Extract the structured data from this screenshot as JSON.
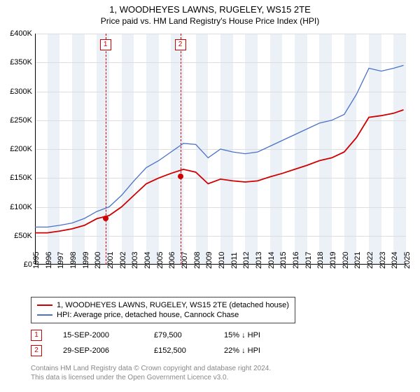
{
  "title": {
    "main": "1, WOODHEYES LAWNS, RUGELEY, WS15 2TE",
    "sub": "Price paid vs. HM Land Registry's House Price Index (HPI)"
  },
  "chart": {
    "type": "line",
    "background_color": "#ffffff",
    "grid_color": "#dddddd",
    "shade_color": "rgba(200,215,235,0.35)",
    "xlim": [
      1995,
      2025
    ],
    "ylim": [
      0,
      400000
    ],
    "ytick_step": 50000,
    "yticks": [
      "£0",
      "£50K",
      "£100K",
      "£150K",
      "£200K",
      "£250K",
      "£300K",
      "£350K",
      "£400K"
    ],
    "xticks": [
      "1995",
      "1996",
      "1997",
      "1998",
      "1999",
      "2000",
      "2001",
      "2002",
      "2003",
      "2004",
      "2005",
      "2006",
      "2007",
      "2008",
      "2009",
      "2010",
      "2011",
      "2012",
      "2013",
      "2014",
      "2015",
      "2016",
      "2017",
      "2018",
      "2019",
      "2020",
      "2021",
      "2022",
      "2023",
      "2024",
      "2025"
    ],
    "series": [
      {
        "name": "property",
        "color": "#d00000",
        "line_width": 1.8,
        "label": "1, WOODHEYES LAWNS, RUGELEY, WS15 2TE (detached house)",
        "points": [
          [
            1995,
            55000
          ],
          [
            1996,
            55000
          ],
          [
            1997,
            58000
          ],
          [
            1998,
            62000
          ],
          [
            1999,
            68000
          ],
          [
            2000,
            79500
          ],
          [
            2001,
            85000
          ],
          [
            2002,
            100000
          ],
          [
            2003,
            120000
          ],
          [
            2004,
            140000
          ],
          [
            2005,
            150000
          ],
          [
            2006,
            158000
          ],
          [
            2007,
            165000
          ],
          [
            2008,
            160000
          ],
          [
            2009,
            140000
          ],
          [
            2010,
            148000
          ],
          [
            2011,
            145000
          ],
          [
            2012,
            143000
          ],
          [
            2013,
            145000
          ],
          [
            2014,
            152000
          ],
          [
            2015,
            158000
          ],
          [
            2016,
            165000
          ],
          [
            2017,
            172000
          ],
          [
            2018,
            180000
          ],
          [
            2019,
            185000
          ],
          [
            2020,
            195000
          ],
          [
            2021,
            220000
          ],
          [
            2022,
            255000
          ],
          [
            2023,
            258000
          ],
          [
            2024,
            262000
          ],
          [
            2024.8,
            268000
          ]
        ]
      },
      {
        "name": "hpi",
        "color": "#4a72c8",
        "line_width": 1.3,
        "label": "HPI: Average price, detached house, Cannock Chase",
        "points": [
          [
            1995,
            65000
          ],
          [
            1996,
            65000
          ],
          [
            1997,
            68000
          ],
          [
            1998,
            72000
          ],
          [
            1999,
            80000
          ],
          [
            2000,
            92000
          ],
          [
            2001,
            100000
          ],
          [
            2002,
            120000
          ],
          [
            2003,
            145000
          ],
          [
            2004,
            168000
          ],
          [
            2005,
            180000
          ],
          [
            2006,
            195000
          ],
          [
            2007,
            210000
          ],
          [
            2008,
            208000
          ],
          [
            2009,
            185000
          ],
          [
            2010,
            200000
          ],
          [
            2011,
            195000
          ],
          [
            2012,
            192000
          ],
          [
            2013,
            195000
          ],
          [
            2014,
            205000
          ],
          [
            2015,
            215000
          ],
          [
            2016,
            225000
          ],
          [
            2017,
            235000
          ],
          [
            2018,
            245000
          ],
          [
            2019,
            250000
          ],
          [
            2020,
            260000
          ],
          [
            2021,
            295000
          ],
          [
            2022,
            340000
          ],
          [
            2023,
            335000
          ],
          [
            2024,
            340000
          ],
          [
            2024.8,
            345000
          ]
        ]
      }
    ],
    "markers": [
      {
        "n": "1",
        "x": 2000.7,
        "y": 79500,
        "date": "15-SEP-2000",
        "price": "£79,500",
        "diff": "15% ↓ HPI",
        "color": "#d00000"
      },
      {
        "n": "2",
        "x": 2006.75,
        "y": 152500,
        "date": "29-SEP-2006",
        "price": "£152,500",
        "diff": "22% ↓ HPI",
        "color": "#d00000"
      }
    ],
    "shade_count": 15
  },
  "footer": {
    "line1": "Contains HM Land Registry data © Crown copyright and database right 2024.",
    "line2": "This data is licensed under the Open Government Licence v3.0."
  }
}
